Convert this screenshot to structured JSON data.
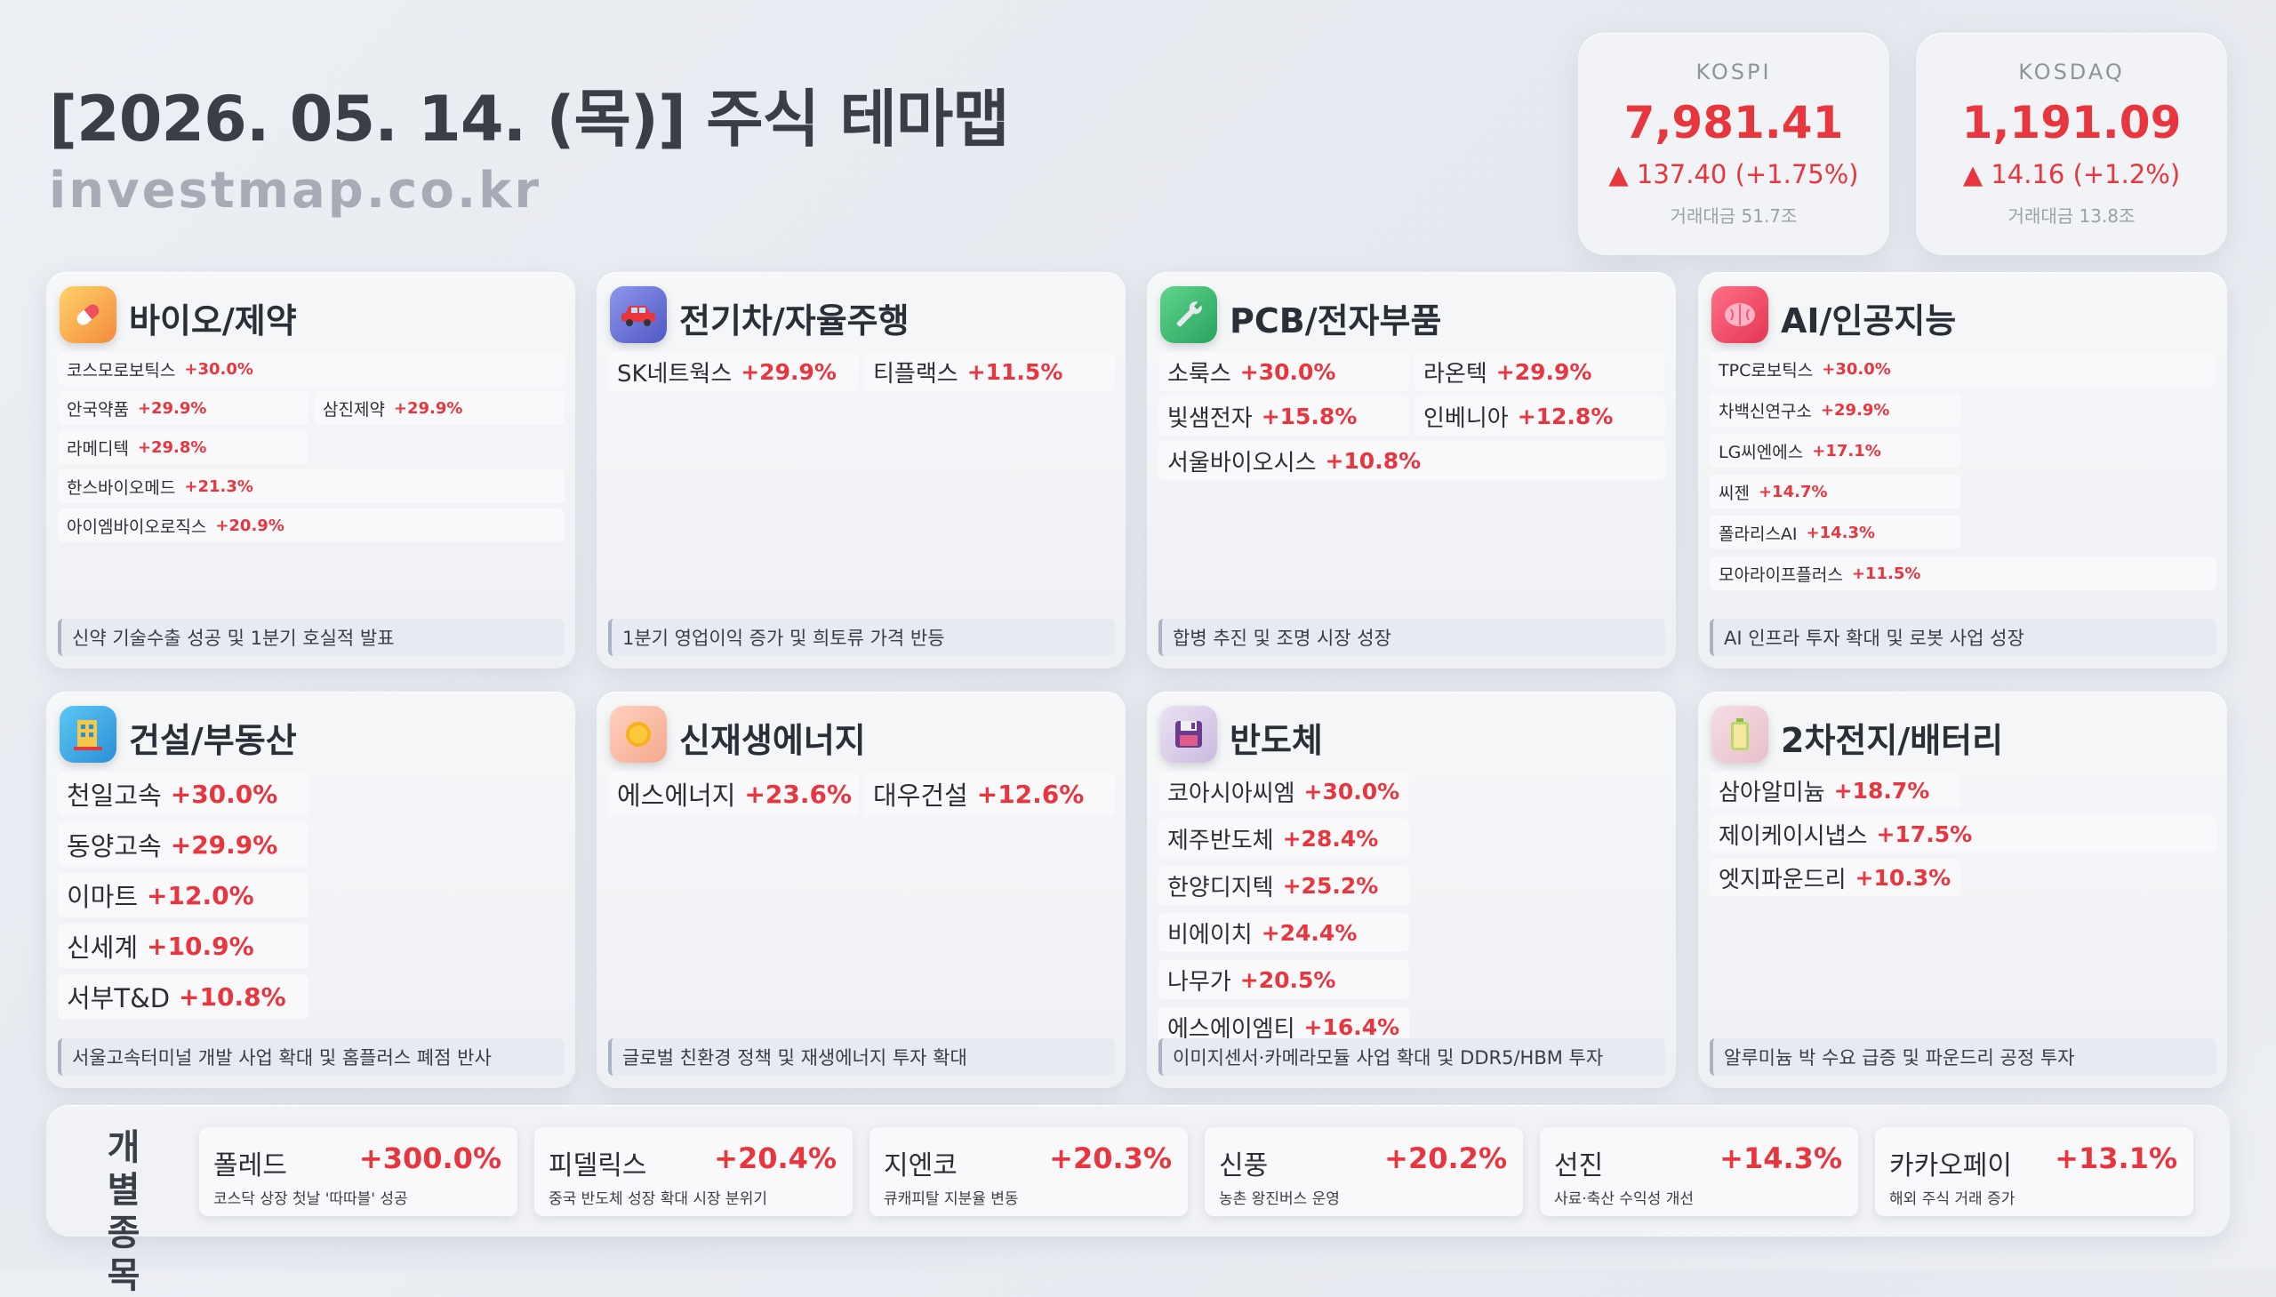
{
  "header": {
    "title": "[2026. 05. 14. (목)] 주식 테마맵",
    "site": "investmap.co.kr"
  },
  "indices": [
    {
      "name": "KOSPI",
      "value": "7,981.41",
      "change": "▲ 137.40 (+1.75%)",
      "volume": "거래대금 51.7조"
    },
    {
      "name": "KOSDAQ",
      "value": "1,191.09",
      "change": "▲ 14.16 (+1.2%)",
      "volume": "거래대금 13.8조"
    }
  ],
  "themes": [
    {
      "title": "바이오/제약",
      "icon": "pill-icon",
      "stocks": [
        {
          "name": "코스모로보틱스",
          "pct": "+30.0%"
        },
        {
          "name": "안국약품",
          "pct": "+29.9%"
        },
        {
          "name": "삼진제약",
          "pct": "+29.9%"
        },
        {
          "name": "라메디텍",
          "pct": "+29.8%"
        },
        {
          "name": "한스바이오메드",
          "pct": "+21.3%"
        },
        {
          "name": "아이엠바이오로직스",
          "pct": "+20.9%"
        }
      ],
      "desc": "신약 기술수출 성공 및 1분기 호실적 발표"
    },
    {
      "title": "전기차/자율주행",
      "icon": "car-icon",
      "stocks": [
        {
          "name": "SK네트웍스",
          "pct": "+29.9%"
        },
        {
          "name": "티플랙스",
          "pct": "+11.5%"
        }
      ],
      "desc": "1분기 영업이익 증가 및 희토류 가격 반등"
    },
    {
      "title": "PCB/전자부품",
      "icon": "wrench-icon",
      "stocks": [
        {
          "name": "소룩스",
          "pct": "+30.0%"
        },
        {
          "name": "라온텍",
          "pct": "+29.9%"
        },
        {
          "name": "빛샘전자",
          "pct": "+15.8%"
        },
        {
          "name": "인베니아",
          "pct": "+12.8%"
        },
        {
          "name": "서울바이오시스",
          "pct": "+10.8%"
        }
      ],
      "desc": "합병 추진 및 조명 시장 성장"
    },
    {
      "title": "AI/인공지능",
      "icon": "brain-icon",
      "stocks": [
        {
          "name": "TPC로보틱스",
          "pct": "+30.0%"
        },
        {
          "name": "차백신연구소",
          "pct": "+29.9%"
        },
        {
          "name": "LG씨엔에스",
          "pct": "+17.1%"
        },
        {
          "name": "씨젠",
          "pct": "+14.7%"
        },
        {
          "name": "폴라리스AI",
          "pct": "+14.3%"
        },
        {
          "name": "모아라이프플러스",
          "pct": "+11.5%"
        }
      ],
      "desc": "AI 인프라 투자 확대 및 로봇 사업 성장"
    },
    {
      "title": "건설/부동산",
      "icon": "building-icon",
      "stocks": [
        {
          "name": "천일고속",
          "pct": "+30.0%"
        },
        {
          "name": "동양고속",
          "pct": "+29.9%"
        },
        {
          "name": "이마트",
          "pct": "+12.0%"
        },
        {
          "name": "신세계",
          "pct": "+10.9%"
        },
        {
          "name": "서부T&D",
          "pct": "+10.8%"
        }
      ],
      "desc": "서울고속터미널 개발 사업 확대 및 홈플러스 폐점 반사"
    },
    {
      "title": "신재생에너지",
      "icon": "sun-icon",
      "stocks": [
        {
          "name": "에스에너지",
          "pct": "+23.6%"
        },
        {
          "name": "대우건설",
          "pct": "+12.6%"
        }
      ],
      "desc": "글로벌 친환경 정책 및 재생에너지 투자 확대"
    },
    {
      "title": "반도체",
      "icon": "chip-icon",
      "stocks": [
        {
          "name": "코아시아씨엠",
          "pct": "+30.0%"
        },
        {
          "name": "제주반도체",
          "pct": "+28.4%"
        },
        {
          "name": "한양디지텍",
          "pct": "+25.2%"
        },
        {
          "name": "비에이치",
          "pct": "+24.4%"
        },
        {
          "name": "나무가",
          "pct": "+20.5%"
        },
        {
          "name": "에스에이엠티",
          "pct": "+16.4%"
        }
      ],
      "desc": "이미지센서·카메라모듈 사업 확대 및 DDR5/HBM 투자"
    },
    {
      "title": "2차전지/배터리",
      "icon": "battery-icon",
      "stocks": [
        {
          "name": "삼아알미늄",
          "pct": "+18.7%"
        },
        {
          "name": "제이케이시냅스",
          "pct": "+17.5%"
        },
        {
          "name": "엣지파운드리",
          "pct": "+10.3%"
        }
      ],
      "desc": "알루미늄 박 수요 급증 및 파운드리 공정 투자"
    }
  ],
  "individual": {
    "label_line1": "개 별",
    "label_line2": "종 목",
    "items": [
      {
        "name": "폴레드",
        "pct": "+300.0%",
        "desc": "코스닥 상장 첫날 '따따블' 성공"
      },
      {
        "name": "피델릭스",
        "pct": "+20.4%",
        "desc": "중국 반도체 성장 확대 시장 분위기"
      },
      {
        "name": "지엔코",
        "pct": "+20.3%",
        "desc": "큐캐피탈 지분율 변동"
      },
      {
        "name": "신풍",
        "pct": "+20.2%",
        "desc": "농촌 왕진버스 운영"
      },
      {
        "name": "선진",
        "pct": "+14.3%",
        "desc": "사료·축산 수익성 개선"
      },
      {
        "name": "카카오페이",
        "pct": "+13.1%",
        "desc": "해외 주식 거래 증가"
      }
    ]
  },
  "colors": {
    "up": "#e8363f",
    "icon_bio": "#f7a64a",
    "icon_ev": "#6a74d6",
    "icon_pcb": "#38b86d",
    "icon_ai": "#ef4f68",
    "icon_construction": "#3ba8e4",
    "icon_energy": "#f6c3b0",
    "icon_chip": "#d8cde8",
    "icon_battery": "#f0cfd8"
  }
}
